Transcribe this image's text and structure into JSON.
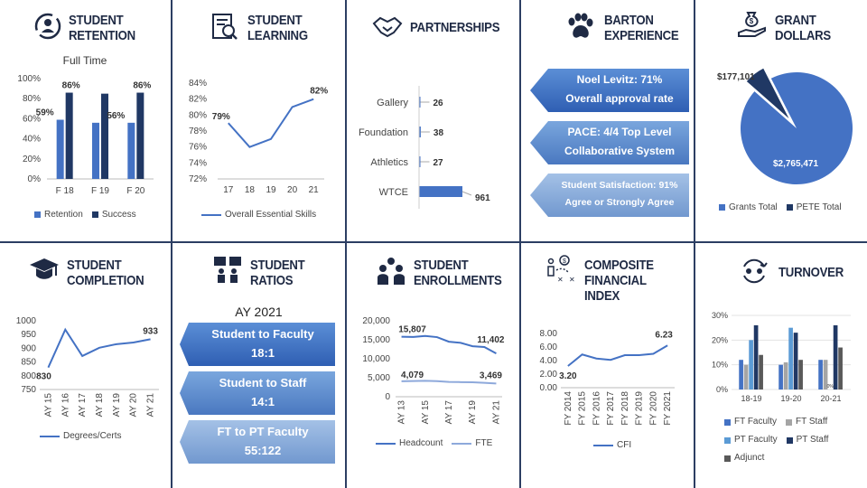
{
  "panels": {
    "retention": {
      "title_line1": "Student",
      "title_line2": "Retention",
      "chart_title": "Full Time",
      "legend": [
        "Retention",
        "Success"
      ]
    },
    "learning": {
      "title_line1": "Student",
      "title_line2": "Learning",
      "legend": [
        "Overall Essential Skills"
      ]
    },
    "partnerships": {
      "title_line1": "Partnerships"
    },
    "barton": {
      "title_line1": "Barton",
      "title_line2": "Experience",
      "boxes": [
        {
          "line1": "Noel Levitz: 71%",
          "line2": "Overall approval rate"
        },
        {
          "line1": "PACE: 4/4  Top Level",
          "line2": "Collaborative System"
        },
        {
          "line1": "Student Satisfaction: 91%",
          "line2": "Agree or Strongly Agree"
        }
      ]
    },
    "grant": {
      "title_line1": "Grant",
      "title_line2": "Dollars",
      "legend": [
        "Grants Total",
        "PETE Total"
      ]
    },
    "completion": {
      "title_line1": "Student",
      "title_line2": "Completion",
      "legend": [
        "Degrees/Certs"
      ]
    },
    "ratios": {
      "title_line1": "Student",
      "title_line2": "Ratios",
      "subtitle": "AY 2021",
      "boxes": [
        {
          "line1": "Student to Faculty",
          "line2": "18:1"
        },
        {
          "line1": "Student to Staff",
          "line2": "14:1"
        },
        {
          "line1": "FT to PT Faculty",
          "line2": "55:122"
        }
      ]
    },
    "enrollments": {
      "title_line1": "Student",
      "title_line2": "Enrollments",
      "legend": [
        "Headcount",
        "FTE"
      ]
    },
    "cfi": {
      "title_line1": "Composite",
      "title_line2": "Financial Index",
      "legend": [
        "CFI"
      ]
    },
    "turnover": {
      "title_line1": "Turnover",
      "legend": [
        "FT Faculty",
        "FT Staff",
        "PT Faculty",
        "PT Staff",
        "Adjunct"
      ]
    }
  },
  "colors": {
    "blue": "#4472c4",
    "navy": "#203864",
    "light": "#5b9bd5",
    "gray": "#a5a5a5",
    "dark": "#595959",
    "title": "#1f2a44"
  },
  "chart_data": [
    {
      "id": "retention",
      "type": "bar",
      "title": "Full Time",
      "categories": [
        "F 18",
        "F 19",
        "F 20"
      ],
      "series": [
        {
          "name": "Retention",
          "values": [
            59,
            56,
            56
          ]
        },
        {
          "name": "Success",
          "values": [
            86,
            85,
            86
          ]
        }
      ],
      "data_labels": {
        "Retention": [
          "59%",
          "",
          "56%"
        ],
        "Success": [
          "86%",
          "",
          "86%"
        ]
      },
      "ylim": [
        0,
        100
      ],
      "yticks": [
        "0%",
        "20%",
        "40%",
        "60%",
        "80%",
        "100%"
      ],
      "grid": false,
      "legend": "bottom"
    },
    {
      "id": "learning",
      "type": "line",
      "categories": [
        "17",
        "18",
        "19",
        "20",
        "21"
      ],
      "series": [
        {
          "name": "Overall Essential Skills",
          "values": [
            79,
            76,
            77,
            81,
            82
          ]
        }
      ],
      "data_labels": [
        "79%",
        "",
        "",
        "",
        "82%"
      ],
      "ylim": [
        72,
        84
      ],
      "yticks": [
        "72%",
        "74%",
        "76%",
        "78%",
        "80%",
        "82%",
        "84%"
      ],
      "legend": "bottom"
    },
    {
      "id": "partnerships",
      "type": "bar",
      "orientation": "horizontal",
      "categories": [
        "Gallery",
        "Foundation",
        "Athletics",
        "WTCE"
      ],
      "values": [
        26,
        38,
        27,
        961
      ],
      "data_labels": [
        "26",
        "38",
        "27",
        "961"
      ]
    },
    {
      "id": "grant",
      "type": "pie",
      "categories": [
        "Grants Total",
        "PETE Total"
      ],
      "values": [
        2765471,
        177101
      ],
      "data_labels": [
        "$2,765,471",
        "$177,101"
      ],
      "legend": "bottom"
    },
    {
      "id": "completion",
      "type": "line",
      "categories": [
        "AY 15",
        "AY 16",
        "AY 17",
        "AY 18",
        "AY 19",
        "AY 20",
        "AY 21"
      ],
      "series": [
        {
          "name": "Degrees/Certs",
          "values": [
            830,
            968,
            872,
            902,
            915,
            921,
            933
          ]
        }
      ],
      "data_labels": [
        "830",
        "",
        "",
        "",
        "",
        "",
        "933"
      ],
      "ylim": [
        750,
        1000
      ],
      "yticks": [
        "750",
        "800",
        "850",
        "900",
        "950",
        "1000"
      ],
      "legend": "bottom"
    },
    {
      "id": "enrollments",
      "type": "line",
      "categories": [
        "AY 13",
        "AY 14",
        "AY 15",
        "AY 16",
        "AY 17",
        "AY 18",
        "AY 19",
        "AY 20",
        "AY 21"
      ],
      "xtick_labels": [
        "AY 13",
        "AY 15",
        "AY 17",
        "AY 19",
        "AY 21"
      ],
      "series": [
        {
          "name": "Headcount",
          "values": [
            15807,
            15750,
            16000,
            15700,
            14500,
            14200,
            13300,
            13100,
            11402
          ]
        },
        {
          "name": "FTE",
          "values": [
            4079,
            4150,
            4200,
            4100,
            3900,
            3850,
            3800,
            3650,
            3469
          ]
        }
      ],
      "data_labels": {
        "Headcount": [
          "15,807",
          "",
          "",
          "",
          "",
          "",
          "",
          "",
          "11,402"
        ],
        "FTE": [
          "4,079",
          "",
          "",
          "",
          "",
          "",
          "",
          "",
          "3,469"
        ]
      },
      "ylim": [
        0,
        20000
      ],
      "yticks": [
        "0",
        "5,000",
        "10,000",
        "15,000",
        "20,000"
      ],
      "legend": "bottom"
    },
    {
      "id": "cfi",
      "type": "line",
      "categories": [
        "FY 2014",
        "FY 2015",
        "FY 2016",
        "FY 2017",
        "FY 2018",
        "FY 2019",
        "FY 2020",
        "FY 2021"
      ],
      "series": [
        {
          "name": "CFI",
          "values": [
            3.2,
            4.9,
            4.3,
            4.1,
            4.8,
            4.8,
            5.0,
            6.23
          ]
        }
      ],
      "data_labels": [
        "3.20",
        "",
        "",
        "",
        "",
        "",
        "",
        "6.23"
      ],
      "ylim": [
        0,
        8
      ],
      "yticks": [
        "0.00",
        "2.00",
        "4.00",
        "6.00",
        "8.00"
      ],
      "legend": "bottom"
    },
    {
      "id": "turnover",
      "type": "bar",
      "categories": [
        "18-19",
        "19-20",
        "20-21"
      ],
      "series": [
        {
          "name": "FT Faculty",
          "values": [
            12,
            10,
            12
          ]
        },
        {
          "name": "FT Staff",
          "values": [
            10,
            11,
            12
          ]
        },
        {
          "name": "PT Faculty",
          "values": [
            20,
            25,
            0
          ]
        },
        {
          "name": "PT Staff",
          "values": [
            26,
            23,
            26
          ]
        },
        {
          "name": "Adjunct",
          "values": [
            14,
            12,
            17
          ]
        }
      ],
      "data_labels": [
        "0%"
      ],
      "ylim": [
        0,
        30
      ],
      "yticks": [
        "0%",
        "10%",
        "20%",
        "30%"
      ],
      "legend": "bottom"
    }
  ]
}
